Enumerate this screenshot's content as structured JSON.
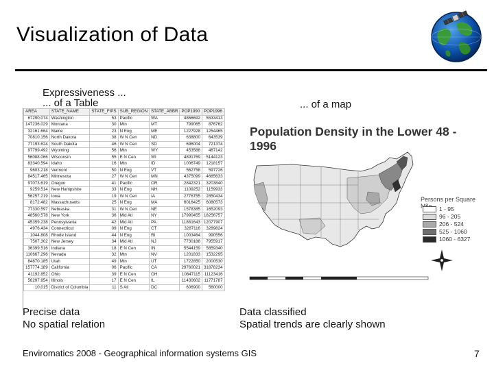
{
  "slide": {
    "title": "Visualization of Data",
    "footer": "Enviromatics 2008 - Geographical information systems GIS",
    "page_number": "7"
  },
  "left_panel": {
    "heading_line1": "Expressiveness ...",
    "heading_line2": "... of a Table",
    "caption_line1": "Precise data",
    "caption_line2": "No spatial relation"
  },
  "right_panel": {
    "heading": "... of a map",
    "caption_line1": "Data classified",
    "caption_line2": "Spatial trends are clearly shown"
  },
  "table": {
    "columns": [
      "AREA",
      "STATE_NAME",
      "STATE_FIPS",
      "SUB_REGION",
      "STATE_ABBR",
      "POP1990",
      "POP1996"
    ],
    "rows": [
      [
        "67290.074",
        "Washington",
        "53",
        "Pacific",
        "WA",
        "4866692",
        "5533413"
      ],
      [
        "147236.029",
        "Montana",
        "30",
        "Mtn",
        "MT",
        "799065",
        "876762"
      ],
      [
        "32161.664",
        "Maine",
        "23",
        "N Eng",
        "ME",
        "1227928",
        "1254465"
      ],
      [
        "70810.156",
        "North Dakota",
        "38",
        "W N Cen",
        "ND",
        "638800",
        "643539"
      ],
      [
        "77193.624",
        "South Dakota",
        "46",
        "W N Cen",
        "SD",
        "696004",
        "721374"
      ],
      [
        "97799.492",
        "Wyoming",
        "56",
        "Mtn",
        "WY",
        "453588",
        "487142"
      ],
      [
        "56088.066",
        "Wisconsin",
        "55",
        "E N Cen",
        "WI",
        "4891769",
        "5144123"
      ],
      [
        "83340.594",
        "Idaho",
        "16",
        "Mtn",
        "ID",
        "1006749",
        "1218157"
      ],
      [
        "9603.218",
        "Vermont",
        "50",
        "N Eng",
        "VT",
        "562758",
        "597726"
      ],
      [
        "84517.465",
        "Minnesota",
        "27",
        "W N Cen",
        "MN",
        "4375099",
        "4685633"
      ],
      [
        "97073.619",
        "Oregon",
        "41",
        "Pacific",
        "OR",
        "2842321",
        "3203840"
      ],
      [
        "9259.514",
        "New Hampshire",
        "33",
        "N Eng",
        "NH",
        "1109252",
        "1159933"
      ],
      [
        "56257.219",
        "Iowa",
        "19",
        "W N Cen",
        "IA",
        "2776755",
        "2850434"
      ],
      [
        "8172.482",
        "Massachusetts",
        "25",
        "N Eng",
        "MA",
        "6016425",
        "6080573"
      ],
      [
        "77330.597",
        "Nebraska",
        "31",
        "W N Cen",
        "NE",
        "1578385",
        "1652093"
      ],
      [
        "48560.578",
        "New York",
        "36",
        "Mid Atl",
        "NY",
        "17990455",
        "18256757"
      ],
      [
        "45359.238",
        "Pennsylvania",
        "42",
        "Mid Atl",
        "PA",
        "11881643",
        "12077907"
      ],
      [
        "4976.434",
        "Connecticut",
        "09",
        "N Eng",
        "CT",
        "3287116",
        "3289824"
      ],
      [
        "1044.808",
        "Rhode Island",
        "44",
        "N Eng",
        "RI",
        "1003464",
        "990556"
      ],
      [
        "7507.302",
        "New Jersey",
        "34",
        "Mid Atl",
        "NJ",
        "7730188",
        "7955917"
      ],
      [
        "36399.516",
        "Indiana",
        "18",
        "E N Cen",
        "IN",
        "5544159",
        "5859340"
      ],
      [
        "110667.296",
        "Nevada",
        "32",
        "Mtn",
        "NV",
        "1201833",
        "1532295"
      ],
      [
        "84870.185",
        "Utah",
        "49",
        "Mtn",
        "UT",
        "1722850",
        "2000530"
      ],
      [
        "157774.189",
        "California",
        "06",
        "Pacific",
        "CA",
        "29760021",
        "31878234"
      ],
      [
        "41192.852",
        "Ohio",
        "39",
        "E N Cen",
        "OH",
        "10847115",
        "11123416"
      ],
      [
        "56297.954",
        "Illinois",
        "17",
        "E N Cen",
        "IL",
        "11430602",
        "11771787"
      ],
      [
        "10.015",
        "District of Columbia",
        "11",
        "S Atl",
        "DC",
        "606900",
        "560000"
      ]
    ]
  },
  "map": {
    "title": "Population Density in the Lower 48 - 1996",
    "legend_title": "Persons per Square Mile",
    "legend": [
      {
        "label": "1 - 95",
        "color": "#ffffff"
      },
      {
        "label": "96 - 205",
        "color": "#dcdcdc"
      },
      {
        "label": "206 - 524",
        "color": "#a9a9a9"
      },
      {
        "label": "525 - 1060",
        "color": "#6e6e6e"
      },
      {
        "label": "1060 - 6327",
        "color": "#2a2a2a"
      }
    ]
  }
}
